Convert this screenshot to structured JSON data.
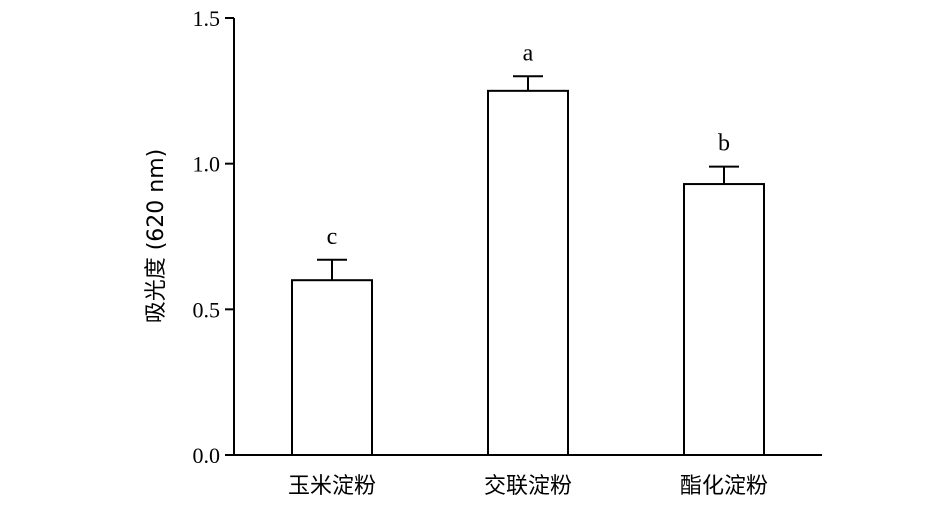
{
  "chart_data": {
    "type": "bar",
    "title": "",
    "xlabel": "",
    "ylabel": "吸光度 (620 nm)",
    "categories": [
      "玉米淀粉",
      "交联淀粉",
      "酯化淀粉"
    ],
    "values": [
      0.6,
      1.25,
      0.93
    ],
    "errors": [
      0.07,
      0.05,
      0.06
    ],
    "significance_letters": [
      "c",
      "a",
      "b"
    ],
    "ylim": [
      0.0,
      1.5
    ],
    "yticks": [
      "0.0",
      "0.5",
      "1.0",
      "1.5"
    ],
    "grid": false,
    "legend": "none",
    "bar_fill": "#ffffff",
    "bar_stroke": "#000000"
  }
}
